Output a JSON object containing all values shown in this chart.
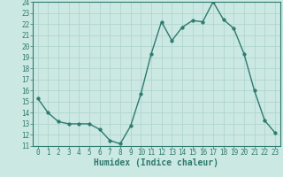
{
  "xlabel": "Humidex (Indice chaleur)",
  "x": [
    0,
    1,
    2,
    3,
    4,
    5,
    6,
    7,
    8,
    9,
    10,
    11,
    12,
    13,
    14,
    15,
    16,
    17,
    18,
    19,
    20,
    21,
    22,
    23
  ],
  "y": [
    15.3,
    14.0,
    13.2,
    13.0,
    13.0,
    13.0,
    12.5,
    11.5,
    11.2,
    12.8,
    15.7,
    19.3,
    22.2,
    20.5,
    21.7,
    22.3,
    22.2,
    24.0,
    22.4,
    21.6,
    19.3,
    16.0,
    13.3,
    12.2
  ],
  "line_color": "#2d7a6e",
  "bg_color": "#cce8e3",
  "grid_color": "#b0d5cf",
  "tick_color": "#2d7a6e",
  "ylim": [
    11,
    24
  ],
  "yticks": [
    11,
    12,
    13,
    14,
    15,
    16,
    17,
    18,
    19,
    20,
    21,
    22,
    23,
    24
  ],
  "xticks": [
    0,
    1,
    2,
    3,
    4,
    5,
    6,
    7,
    8,
    9,
    10,
    11,
    12,
    13,
    14,
    15,
    16,
    17,
    18,
    19,
    20,
    21,
    22,
    23
  ],
  "marker_size": 2.5,
  "line_width": 1.0,
  "xlabel_fontsize": 7,
  "tick_fontsize": 5.5
}
